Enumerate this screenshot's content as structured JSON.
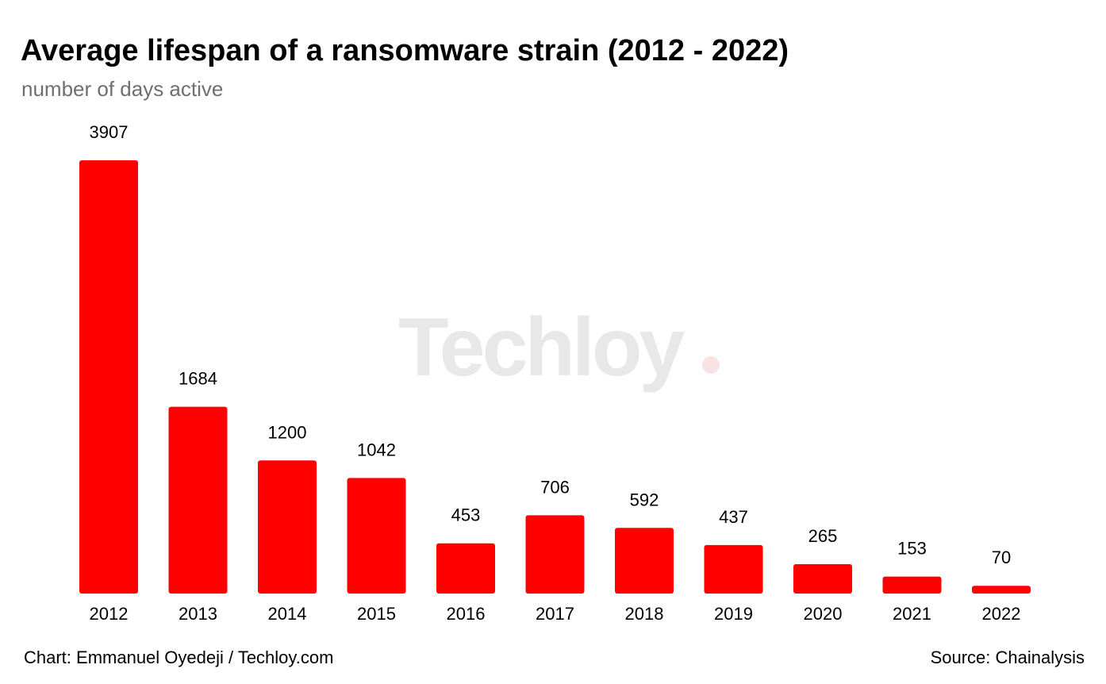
{
  "chart_data": {
    "type": "bar",
    "title": "Average lifespan of a ransomware strain (2012 - 2022)",
    "subtitle": "number of days active",
    "categories": [
      "2012",
      "2013",
      "2014",
      "2015",
      "2016",
      "2017",
      "2018",
      "2019",
      "2020",
      "2021",
      "2022"
    ],
    "values": [
      3907,
      1684,
      1200,
      1042,
      453,
      706,
      592,
      437,
      265,
      153,
      70
    ],
    "bar_color": "#ff0000",
    "data_labels": true,
    "grid": false,
    "legend": "none"
  },
  "watermark": {
    "text": "Techloy",
    "dot_color": "#fbe2e2"
  },
  "footer": {
    "credit": "Chart: Emmanuel Oyedeji / Techloy.com",
    "source": "Source: Chainalysis"
  }
}
